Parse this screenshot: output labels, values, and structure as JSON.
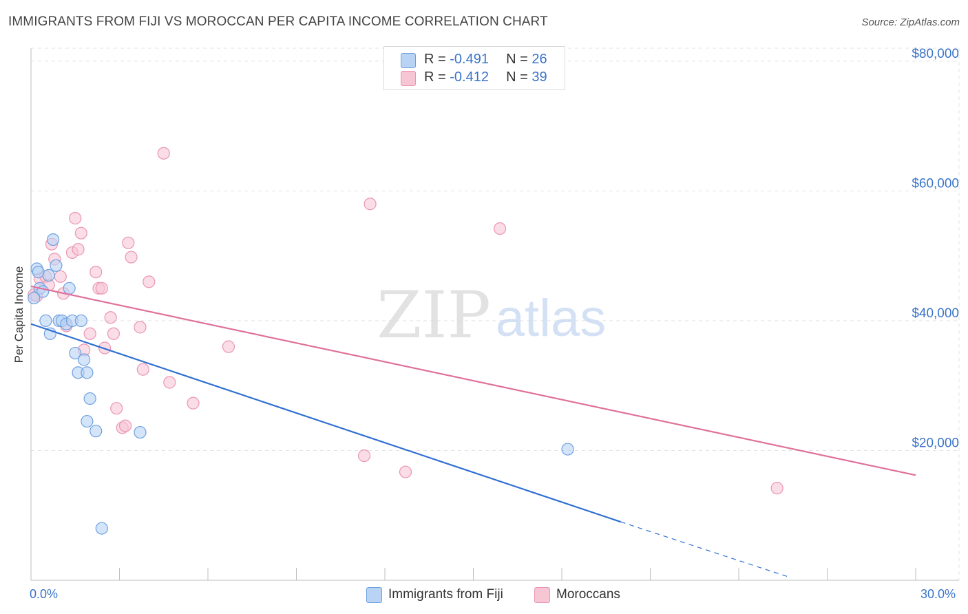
{
  "header": {
    "title": "IMMIGRANTS FROM FIJI VS MOROCCAN PER CAPITA INCOME CORRELATION CHART",
    "source": "Source: ZipAtlas.com"
  },
  "watermark": {
    "part1": "ZIP",
    "part2": "atlas"
  },
  "legend": {
    "rows": [
      {
        "r_label": "R = ",
        "r_value": "-0.491",
        "n_label": "N = ",
        "n_value": "26"
      },
      {
        "r_label": "R = ",
        "r_value": "-0.412",
        "n_label": "N = ",
        "n_value": "39"
      }
    ]
  },
  "bottom_legend": {
    "fiji": "Immigrants from Fiji",
    "moroccans": "Moroccans"
  },
  "colors": {
    "fiji_fill": "#b9d3f5",
    "fiji_stroke": "#6fa0e0",
    "fiji_line": "#2f6fd1",
    "moroccan_fill": "#f7c6d5",
    "moroccan_stroke": "#eb95b2",
    "moroccan_line": "#e0709a",
    "axis_text": "#3a74c9",
    "grid": "#e3e3e3"
  },
  "chart_data": {
    "type": "scatter",
    "title": "IMMIGRANTS FROM FIJI VS MOROCCAN PER CAPITA INCOME CORRELATION CHART",
    "xlabel": "",
    "ylabel": "Per Capita Income",
    "xlim": [
      0,
      30
    ],
    "ylim": [
      0,
      82000
    ],
    "x_tick_labels": [
      "0.0%",
      "30.0%"
    ],
    "y_ticks": [
      20000,
      40000,
      60000,
      80000
    ],
    "y_tick_labels": [
      "$20,000",
      "$40,000",
      "$60,000",
      "$80,000"
    ],
    "grid": true,
    "legend_position": "top-center",
    "series": [
      {
        "name": "Immigrants from Fiji",
        "r": -0.491,
        "n": 26,
        "points": [
          [
            0.2,
            48000
          ],
          [
            0.25,
            47500
          ],
          [
            0.3,
            45000
          ],
          [
            0.4,
            44500
          ],
          [
            0.5,
            40000
          ],
          [
            0.6,
            47000
          ],
          [
            0.65,
            38000
          ],
          [
            0.75,
            52500
          ],
          [
            0.85,
            48500
          ],
          [
            0.95,
            40000
          ],
          [
            1.05,
            40000
          ],
          [
            1.2,
            39500
          ],
          [
            1.3,
            45000
          ],
          [
            1.4,
            40000
          ],
          [
            1.5,
            35000
          ],
          [
            1.6,
            32000
          ],
          [
            1.7,
            40000
          ],
          [
            1.8,
            34000
          ],
          [
            1.9,
            24500
          ],
          [
            2.0,
            28000
          ],
          [
            2.2,
            23000
          ],
          [
            2.4,
            8000
          ],
          [
            1.9,
            32000
          ],
          [
            3.7,
            22800
          ],
          [
            18.2,
            20200
          ],
          [
            0.1,
            43500
          ]
        ],
        "trend": {
          "x": [
            0,
            20
          ],
          "y": [
            39500,
            9000
          ]
        },
        "trend_dashed": {
          "x": [
            20,
            25.7
          ],
          "y": [
            9000,
            500
          ]
        }
      },
      {
        "name": "Moroccans",
        "r": -0.412,
        "n": 39,
        "points": [
          [
            0.1,
            44000
          ],
          [
            0.3,
            46500
          ],
          [
            0.5,
            46800
          ],
          [
            0.6,
            45500
          ],
          [
            0.7,
            51800
          ],
          [
            0.8,
            49500
          ],
          [
            1.0,
            46800
          ],
          [
            1.1,
            44200
          ],
          [
            1.2,
            39200
          ],
          [
            1.4,
            50500
          ],
          [
            1.5,
            55800
          ],
          [
            1.6,
            51000
          ],
          [
            1.7,
            53500
          ],
          [
            1.8,
            35500
          ],
          [
            2.0,
            38000
          ],
          [
            2.2,
            47500
          ],
          [
            2.3,
            45000
          ],
          [
            2.4,
            45000
          ],
          [
            2.5,
            35800
          ],
          [
            2.7,
            40500
          ],
          [
            2.8,
            38000
          ],
          [
            2.9,
            26500
          ],
          [
            3.1,
            23500
          ],
          [
            3.2,
            23800
          ],
          [
            3.3,
            52000
          ],
          [
            3.4,
            49800
          ],
          [
            3.7,
            39000
          ],
          [
            3.8,
            32500
          ],
          [
            4.0,
            46000
          ],
          [
            4.5,
            65800
          ],
          [
            4.7,
            30500
          ],
          [
            5.5,
            27300
          ],
          [
            6.7,
            36000
          ],
          [
            11.5,
            58000
          ],
          [
            11.3,
            19200
          ],
          [
            12.7,
            16700
          ],
          [
            15.9,
            54200
          ],
          [
            25.3,
            14200
          ],
          [
            0.2,
            43800
          ]
        ],
        "trend": {
          "x": [
            0,
            30
          ],
          "y": [
            45300,
            16200
          ]
        }
      }
    ]
  }
}
